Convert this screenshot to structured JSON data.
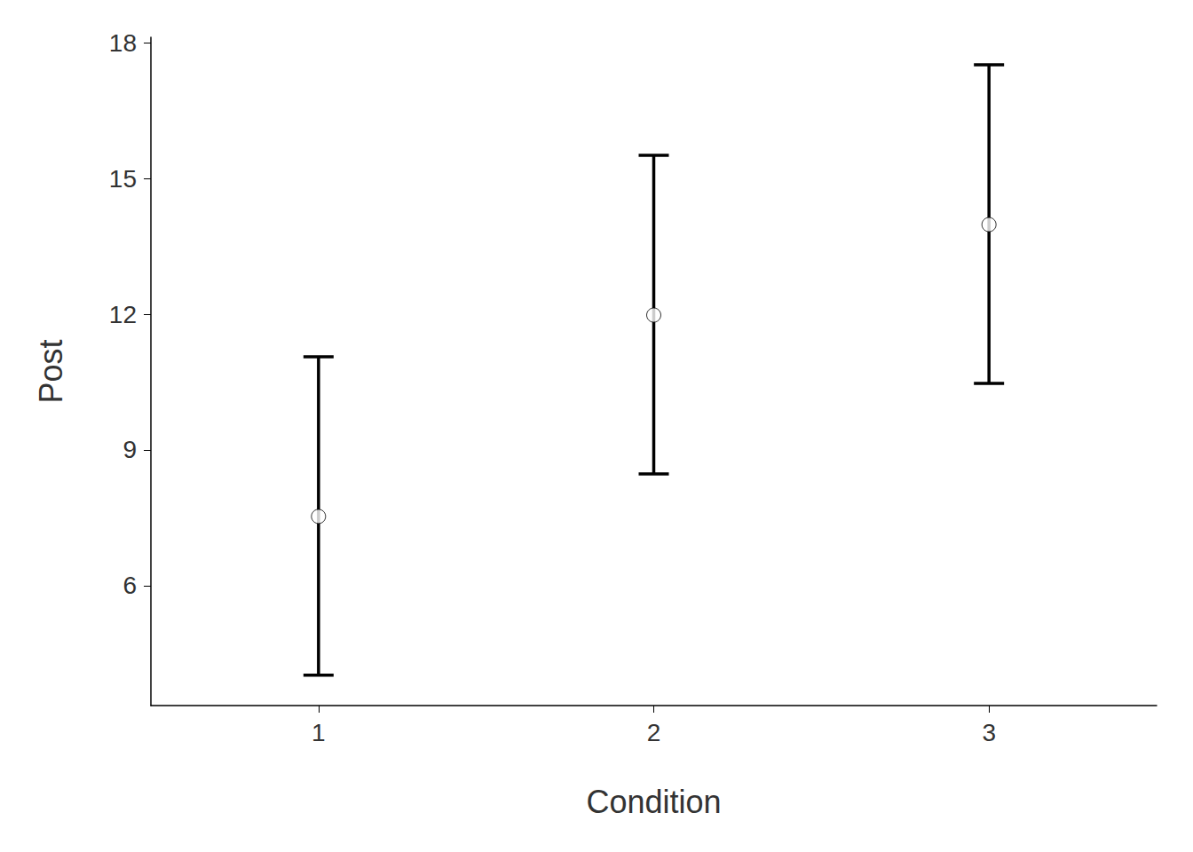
{
  "chart_data": {
    "type": "scatter",
    "x_label": "Condition",
    "y_label": "Post",
    "categories": [
      "1",
      "2",
      "3"
    ],
    "values": [
      7.53,
      11.98,
      13.98
    ],
    "lower": [
      4.02,
      8.47,
      10.47
    ],
    "upper": [
      11.06,
      15.51,
      17.51
    ],
    "color": "#000000",
    "marker": "circle",
    "ylim": [
      3.35,
      18.12
    ],
    "yticks": [
      6,
      9,
      12,
      15,
      18
    ],
    "grid": false
  }
}
